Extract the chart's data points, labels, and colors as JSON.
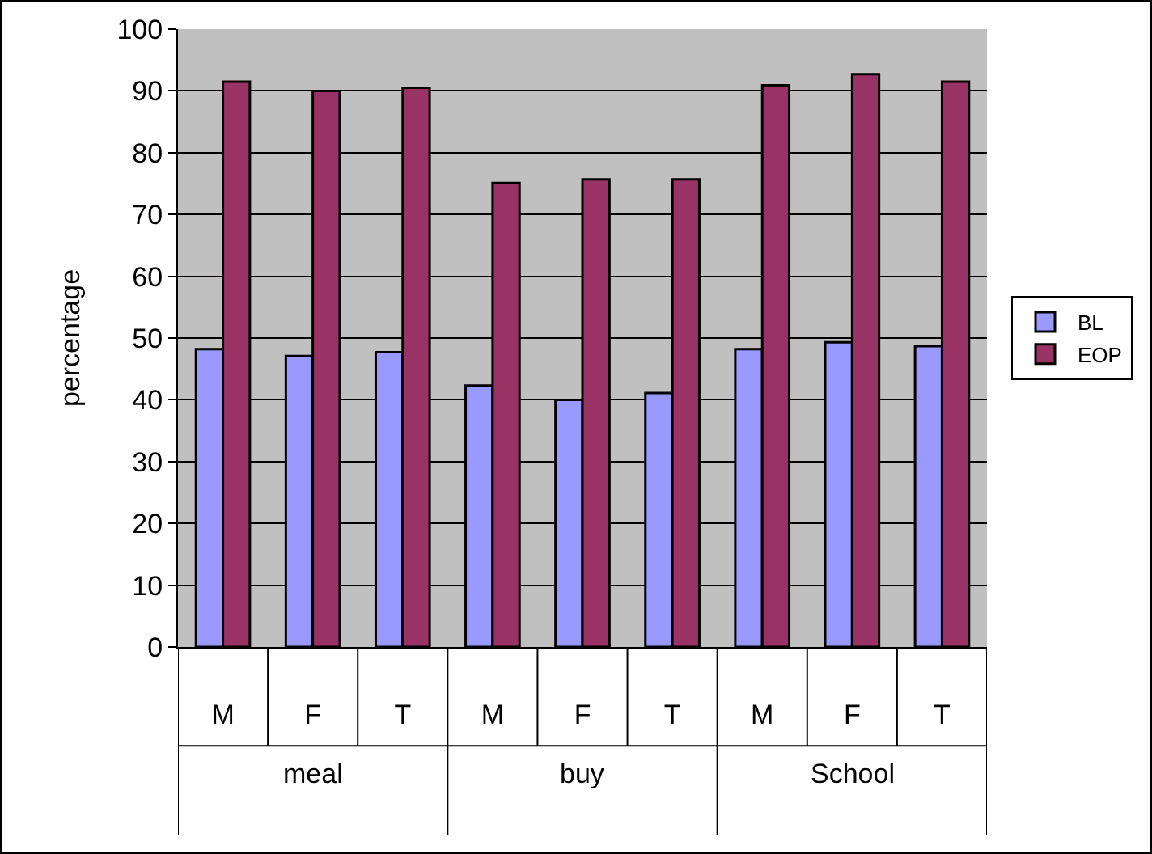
{
  "chart_data": {
    "type": "bar",
    "ylabel": "percentage",
    "categories": [
      "M",
      "F",
      "T",
      "M",
      "F",
      "T",
      "M",
      "F",
      "T"
    ],
    "series": [
      {
        "name": "BL",
        "color": "#9999ff",
        "values": [
          48.2,
          47.1,
          47.7,
          42.3,
          40,
          41.1,
          48.2,
          49.3,
          48.7
        ]
      },
      {
        "name": "EOP",
        "color": "#993366",
        "values": [
          91.5,
          90,
          90.5,
          75.1,
          75.7,
          75.7,
          90.9,
          92.7,
          91.5
        ]
      }
    ],
    "annotations": [
      "meal",
      "buy",
      "School"
    ],
    "ylim": [
      0,
      100
    ],
    "yticks": [
      0,
      10,
      20,
      30,
      40,
      50,
      60,
      70,
      80,
      90,
      100
    ],
    "grid": "y",
    "legend": "right"
  }
}
